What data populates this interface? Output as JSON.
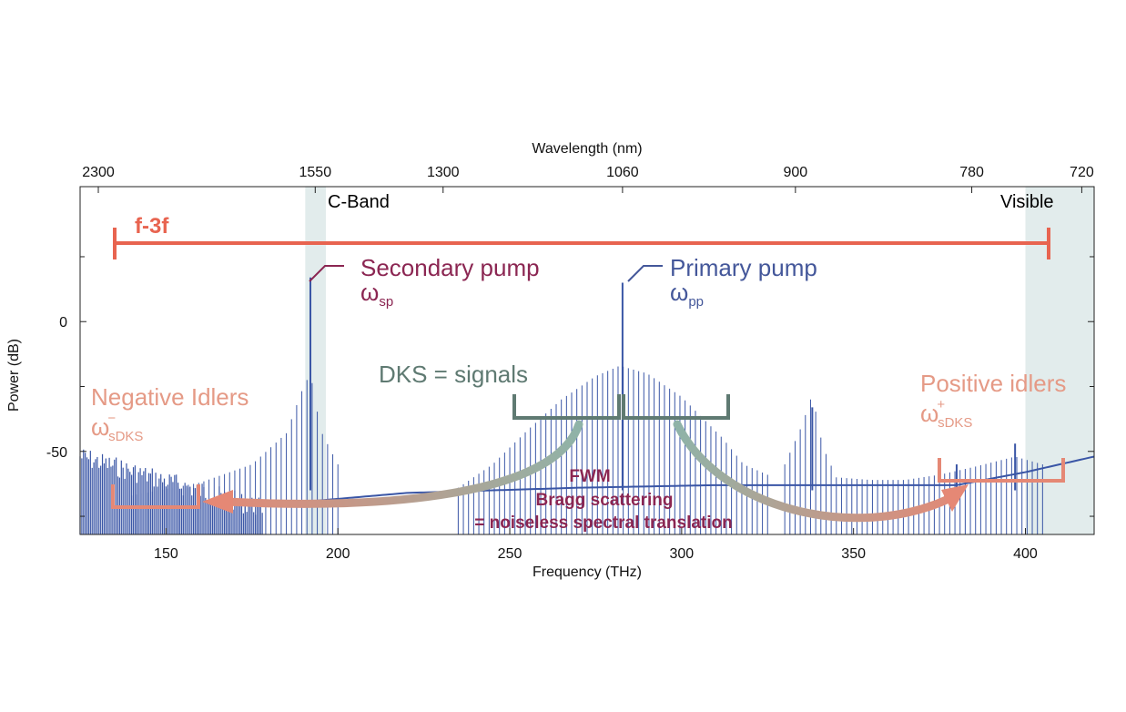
{
  "chart_data": {
    "type": "line",
    "xlabel": "Frequency (THz)",
    "ylabel": "Power (dB)",
    "top_axis_label": "Wavelength (nm)",
    "xlim": [
      125,
      420
    ],
    "ylim": [
      -82,
      52
    ],
    "x_ticks": [
      150,
      200,
      250,
      300,
      350,
      400
    ],
    "y_ticks": [
      0,
      -50
    ],
    "top_ticks": [
      {
        "label": "2300",
        "freq": 130.3
      },
      {
        "label": "1550",
        "freq": 193.4
      },
      {
        "label": "1300",
        "freq": 230.6
      },
      {
        "label": "1060",
        "freq": 282.8
      },
      {
        "label": "900",
        "freq": 333.1
      },
      {
        "label": "780",
        "freq": 384.4
      },
      {
        "label": "720",
        "freq": 416.4
      }
    ],
    "shaded_bands": [
      {
        "label": "C-Band",
        "range": [
          190.5,
          196.5
        ]
      },
      {
        "label": "Visible",
        "range": [
          400,
          420
        ]
      }
    ],
    "f3f_span": {
      "label": "f-3f",
      "range": [
        135,
        408
      ],
      "power": 37
    },
    "comb_envelopes": [
      {
        "name": "secondary pump comb",
        "points": [
          [
            140,
            -67
          ],
          [
            160,
            -62
          ],
          [
            175,
            -55
          ],
          [
            185,
            -43
          ],
          [
            190,
            -25
          ],
          [
            192,
            -20
          ],
          [
            195,
            -42
          ],
          [
            200,
            -55
          ]
        ]
      },
      {
        "name": "DKS signal comb",
        "points": [
          [
            235,
            -64
          ],
          [
            245,
            -55
          ],
          [
            255,
            -42
          ],
          [
            265,
            -30
          ],
          [
            275,
            -21
          ],
          [
            282,
            -17
          ],
          [
            290,
            -20
          ],
          [
            300,
            -29
          ],
          [
            312,
            -45
          ],
          [
            318,
            -55
          ],
          [
            325,
            -59
          ]
        ]
      },
      {
        "name": "positive idler comb",
        "points": [
          [
            330,
            -55
          ],
          [
            335,
            -40
          ],
          [
            338,
            -28
          ],
          [
            341,
            -48
          ],
          [
            345,
            -60
          ],
          [
            355,
            -61
          ],
          [
            365,
            -61
          ],
          [
            375,
            -59
          ],
          [
            385,
            -56
          ],
          [
            397,
            -52
          ],
          [
            405,
            -55
          ]
        ]
      }
    ],
    "peaks": [
      {
        "name": "secondary pump",
        "x": 192,
        "y": 17
      },
      {
        "name": "primary pump",
        "x": 282.8,
        "y": 15
      },
      {
        "name": "idler peak",
        "x": 338,
        "y": -33
      },
      {
        "name": "idler peak",
        "x": 397,
        "y": -47
      },
      {
        "name": "idler peak",
        "x": 380,
        "y": -55
      }
    ],
    "noise_floor": {
      "x_range": [
        125,
        178
      ],
      "y_range": [
        -82,
        -48
      ]
    },
    "baseline": [
      [
        185,
        -70
      ],
      [
        220,
        -66
      ],
      [
        270,
        -64
      ],
      [
        310,
        -63
      ],
      [
        340,
        -63
      ],
      [
        380,
        -63
      ],
      [
        400,
        -58
      ],
      [
        420,
        -52
      ]
    ],
    "annotations": {
      "band_c": "C-Band",
      "band_visible": "Visible",
      "f3f": "f-3f",
      "secondary_pump": "Secondary pump",
      "secondary_omega": "ω",
      "secondary_sub": "sp",
      "primary_pump": "Primary pump",
      "primary_omega": "ω",
      "primary_sub": "pp",
      "negative_idlers": "Negative Idlers",
      "negative_omega": "ω",
      "negative_sup": "−",
      "negative_sub": "sDKS",
      "positive_idlers": "Positive idlers",
      "positive_omega": "ω",
      "positive_sup": "+",
      "positive_sub": "sDKS",
      "dks": "DKS = signals",
      "fwm_1": "FWM",
      "fwm_2": "Bragg scattering",
      "fwm_3": "= noiseless spectral translation"
    },
    "colors": {
      "spectrum": "#3a56a6",
      "band_shade": "#e2ecec",
      "f3f": "#e86450",
      "secondary": "#8b2652",
      "primary": "#44579a",
      "idler": "#e59a86",
      "dks": "#5f7a72"
    }
  }
}
